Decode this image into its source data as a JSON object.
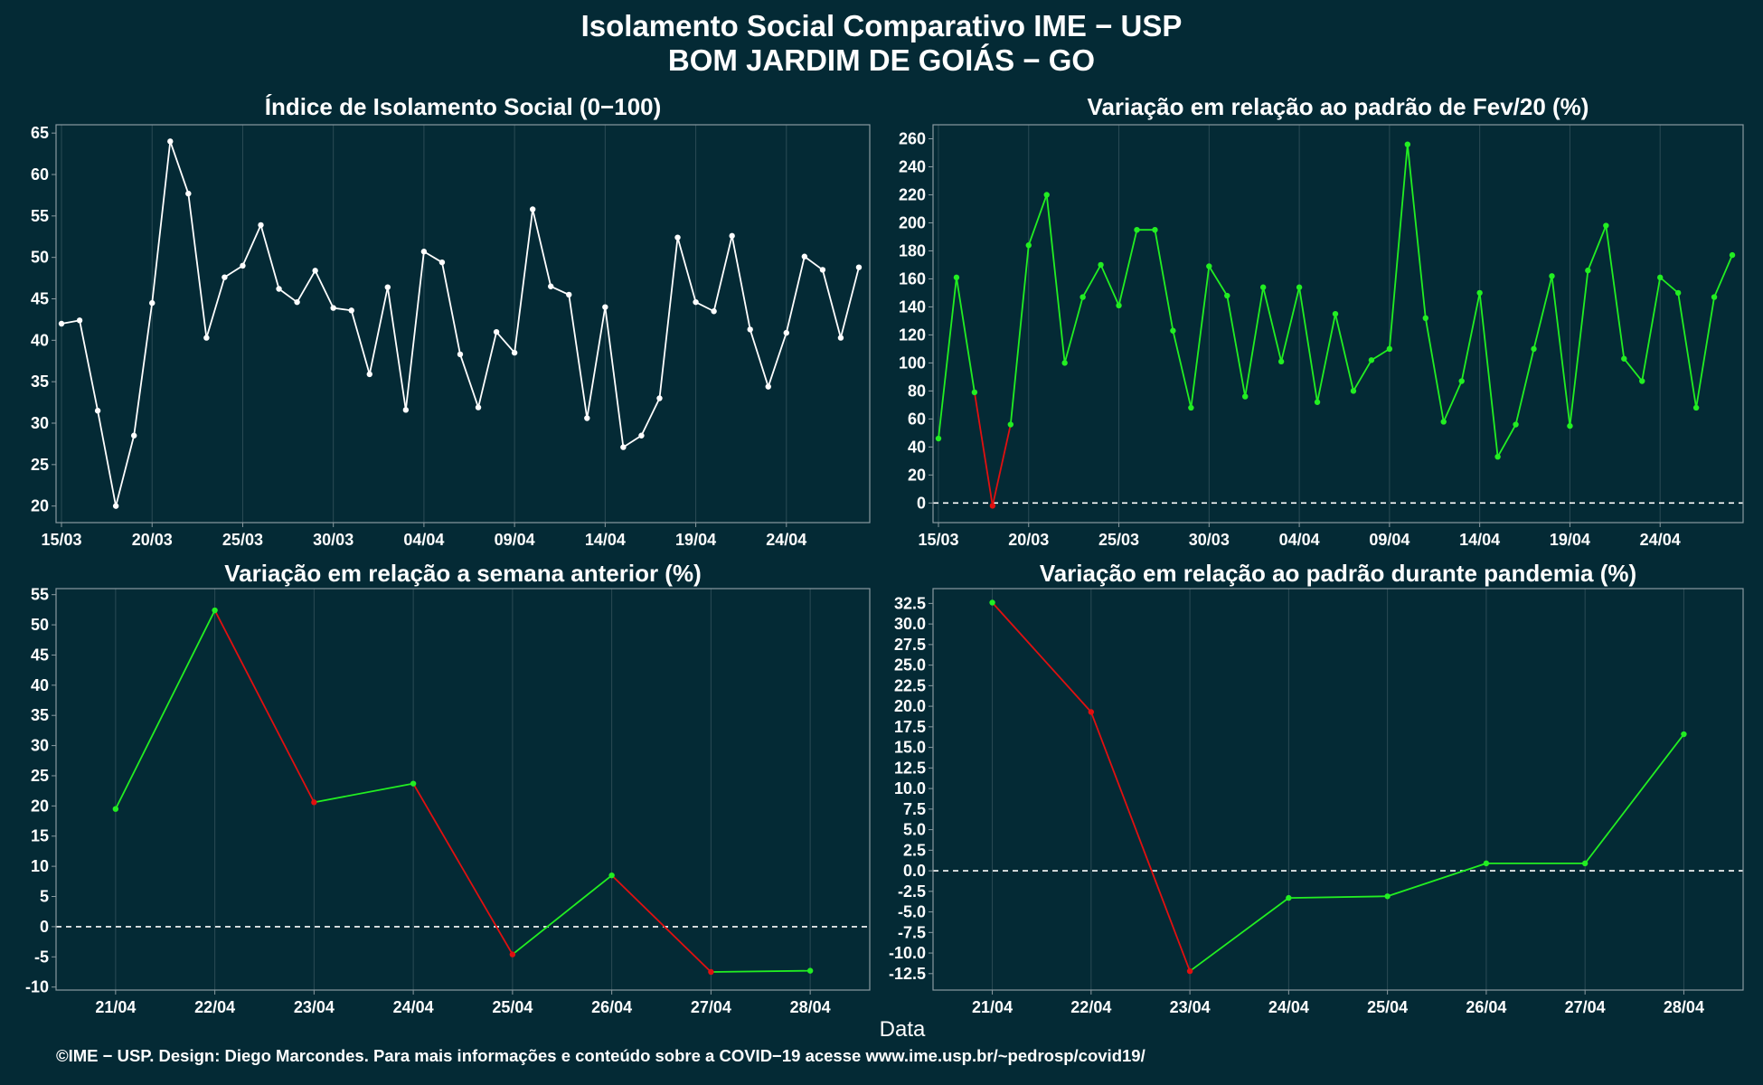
{
  "title": "Isolamento Social Comparativo IME − USP",
  "subtitle": "BOM JARDIM DE GOIÁS − GO",
  "xlabel": "Data",
  "footer": "©IME − USP. Design: Diego Marcondes. Para mais informações e conteúdo sobre a COVID−19 acesse www.ime.usp.br/~pedrosp/covid19/",
  "colors": {
    "background": "#042a35",
    "plot_border": "#8a9aa0",
    "grid": "#2b4b55",
    "white": "#ffffff",
    "up": "#22ee22",
    "down": "#e01010"
  },
  "chart_data": [
    {
      "id": "p1",
      "type": "line",
      "title": "Índice de Isolamento Social (0−100)",
      "color_mode": "white",
      "x_ticks": [
        "15/03",
        "20/03",
        "25/03",
        "30/03",
        "04/04",
        "09/04",
        "14/04",
        "19/04",
        "24/04"
      ],
      "x_tick_index": [
        0,
        5,
        10,
        15,
        20,
        25,
        30,
        35,
        40
      ],
      "xlim": [
        -0.3,
        44.6
      ],
      "ylim": [
        18,
        66
      ],
      "y_ticks": [
        20,
        25,
        30,
        35,
        40,
        45,
        50,
        55,
        60,
        65
      ],
      "zero_line": false,
      "x": [
        "15/03",
        "16/03",
        "17/03",
        "18/03",
        "19/03",
        "20/03",
        "21/03",
        "22/03",
        "23/03",
        "24/03",
        "25/03",
        "26/03",
        "27/03",
        "28/03",
        "29/03",
        "30/03",
        "31/03",
        "01/04",
        "02/04",
        "03/04",
        "04/04",
        "05/04",
        "06/04",
        "07/04",
        "08/04",
        "09/04",
        "10/04",
        "11/04",
        "12/04",
        "13/04",
        "14/04",
        "15/04",
        "16/04",
        "17/04",
        "18/04",
        "19/04",
        "20/04",
        "21/04",
        "22/04",
        "23/04",
        "24/04",
        "25/04",
        "26/04",
        "27/04",
        "28/04"
      ],
      "values": [
        42.0,
        42.4,
        31.5,
        20.0,
        28.5,
        44.5,
        64.0,
        57.7,
        40.3,
        47.6,
        49.0,
        53.9,
        46.2,
        44.6,
        48.4,
        43.9,
        43.6,
        35.9,
        46.4,
        31.6,
        50.7,
        49.4,
        38.3,
        31.9,
        41.0,
        38.5,
        55.8,
        46.5,
        45.5,
        30.6,
        44.0,
        27.1,
        28.5,
        33.0,
        52.4,
        44.6,
        43.5,
        52.6,
        41.3,
        34.4,
        40.9,
        50.1,
        48.5,
        40.3,
        48.8
      ]
    },
    {
      "id": "p2",
      "type": "line",
      "title": "Variação em relação ao padrão de Fev/20 (%)",
      "color_mode": "sign",
      "x_ticks": [
        "15/03",
        "20/03",
        "25/03",
        "30/03",
        "04/04",
        "09/04",
        "14/04",
        "19/04",
        "24/04"
      ],
      "x_tick_index": [
        0,
        5,
        10,
        15,
        20,
        25,
        30,
        35,
        40
      ],
      "xlim": [
        -0.3,
        44.6
      ],
      "ylim": [
        -14,
        270
      ],
      "y_ticks": [
        0,
        20,
        40,
        60,
        80,
        100,
        120,
        140,
        160,
        180,
        200,
        220,
        240,
        260
      ],
      "zero_line": true,
      "x": [
        "15/03",
        "16/03",
        "17/03",
        "18/03",
        "19/03",
        "20/03",
        "21/03",
        "22/03",
        "23/03",
        "24/03",
        "25/03",
        "26/03",
        "27/03",
        "28/03",
        "29/03",
        "30/03",
        "31/03",
        "01/04",
        "02/04",
        "03/04",
        "04/04",
        "05/04",
        "06/04",
        "07/04",
        "08/04",
        "09/04",
        "10/04",
        "11/04",
        "12/04",
        "13/04",
        "14/04",
        "15/04",
        "16/04",
        "17/04",
        "18/04",
        "19/04",
        "20/04",
        "21/04",
        "22/04",
        "23/04",
        "24/04",
        "25/04",
        "26/04",
        "27/04",
        "28/04"
      ],
      "values": [
        46,
        161,
        79,
        -2,
        56,
        184,
        220,
        100,
        147,
        170,
        141,
        195,
        195,
        123,
        68,
        169,
        148,
        76,
        154,
        101,
        154,
        72,
        135,
        80,
        102,
        110,
        256,
        132,
        58,
        87,
        150,
        33,
        56,
        110,
        162,
        55,
        166,
        198,
        103,
        87,
        161,
        150,
        68,
        147,
        177
      ]
    },
    {
      "id": "p3",
      "type": "line",
      "title": "Variação em relação a semana anterior (%)",
      "color_mode": "trend",
      "x_ticks": [
        "21/04",
        "22/04",
        "23/04",
        "24/04",
        "25/04",
        "26/04",
        "27/04",
        "28/04"
      ],
      "x_tick_index": [
        0,
        1,
        2,
        3,
        4,
        5,
        6,
        7
      ],
      "xlim": [
        -0.6,
        7.6
      ],
      "ylim": [
        -10.5,
        56
      ],
      "y_ticks": [
        -10,
        -5,
        0,
        5,
        10,
        15,
        20,
        25,
        30,
        35,
        40,
        45,
        50,
        55
      ],
      "zero_line": true,
      "x": [
        "21/04",
        "22/04",
        "23/04",
        "24/04",
        "25/04",
        "26/04",
        "27/04",
        "28/04"
      ],
      "values": [
        19.5,
        52.4,
        20.6,
        23.7,
        -4.6,
        8.5,
        -7.5,
        -7.3
      ]
    },
    {
      "id": "p4",
      "type": "line",
      "title": "Variação em relação ao padrão durante pandemia (%)",
      "color_mode": "trend",
      "x_ticks": [
        "21/04",
        "22/04",
        "23/04",
        "24/04",
        "25/04",
        "26/04",
        "27/04",
        "28/04"
      ],
      "x_tick_index": [
        0,
        1,
        2,
        3,
        4,
        5,
        6,
        7
      ],
      "xlim": [
        -0.6,
        7.6
      ],
      "ylim": [
        -14.5,
        34.3
      ],
      "y_ticks": [
        -12.5,
        -10.0,
        -7.5,
        -5.0,
        -2.5,
        0.0,
        2.5,
        5.0,
        7.5,
        10.0,
        12.5,
        15.0,
        17.5,
        20.0,
        22.5,
        25.0,
        27.5,
        30.0,
        32.5
      ],
      "zero_line": true,
      "x": [
        "21/04",
        "22/04",
        "23/04",
        "24/04",
        "25/04",
        "26/04",
        "27/04",
        "28/04"
      ],
      "values": [
        32.6,
        19.3,
        -12.2,
        -3.3,
        -3.1,
        0.9,
        0.9,
        16.6
      ]
    }
  ]
}
